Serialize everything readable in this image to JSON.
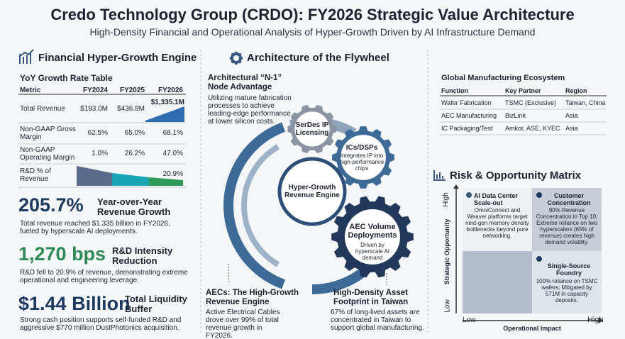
{
  "header": {
    "title": "Credo Technology Group (CRDO): FY2026 Strategic Value Architecture",
    "subtitle": "High-Density Financial and Operational Analysis of Hyper-Growth Driven by AI Infrastructure Demand"
  },
  "financial": {
    "heading": "Financial Hyper-Growth Engine",
    "table_title": "YoY Growth Rate Table",
    "columns": [
      "Metric",
      "FY2024",
      "FY2025",
      "FY2026"
    ],
    "rows": [
      {
        "metric": "Total Revenue",
        "fy2024": "$193.0M",
        "fy2025": "$436.8M",
        "fy2026": "$1,335.1M"
      },
      {
        "metric": "Non-GAAP Gross Margin",
        "fy2024": "62.5%",
        "fy2025": "65.0%",
        "fy2026": "68.1%"
      },
      {
        "metric": "Non-GAAP Operating Margin",
        "fy2024": "1.0%",
        "fy2025": "26.2%",
        "fy2026": "47.0%"
      },
      {
        "metric": "R&D % of Revenue",
        "fy2026": "20.9%"
      }
    ],
    "stats": [
      {
        "value": "205.7%",
        "label": "Year-over-Year Revenue Growth",
        "text": "Total revenue reached $1.335 billion in FY2026, fueled by hyperscale AI deployments."
      },
      {
        "value": "1,270 bps",
        "label": "R&D Intensity Reduction",
        "text": "R&D fell to 20.9% of revenue, demonstrating extreme operational and engineering leverage."
      },
      {
        "value": "$1.44 Billion",
        "label": "Total Liquidity Buffer",
        "text": "Strong cash position supports self-funded R&D and aggressive $770 million DustPhotonics acquisition."
      }
    ]
  },
  "flywheel": {
    "heading": "Architecture of the Flywheel",
    "center": "Hyper-Growth Revenue Engine",
    "serdes": "SerDes IP Licensing",
    "ics": {
      "title": "ICs/DSPs",
      "text": "Integrates IP into high-performance chips"
    },
    "aec": {
      "title": "AEC Volume Deployments",
      "text": "Driven by hyperscale AI demand"
    },
    "callouts": [
      {
        "title": "Architectural “N-1” Node Advantage",
        "text": "Utilizing mature fabrication processes to achieve leading-edge performance at lower silicon costs."
      },
      {
        "title": "AECs: The High-Growth Revenue Engine",
        "text": "Active Electrical Cables drove over 99% of total revenue growth in FY2026."
      },
      {
        "title": "High-Density Asset Footprint in Taiwan",
        "text": "67% of long-lived assets are concentrated in Taiwan to support global manufacturing."
      }
    ]
  },
  "manufacturing": {
    "title": "Global Manufacturing Ecosystem",
    "columns": [
      "Function",
      "Key Partner",
      "Region"
    ],
    "rows": [
      [
        "Wafer Fabrication",
        "TSMC (Exclusive)",
        "Taiwan, China"
      ],
      [
        "AEC Manufacturing",
        "BizLink",
        "Asia"
      ],
      [
        "IC Packaging/Test",
        "Amkor, ASE, KYEC",
        "Asia"
      ]
    ]
  },
  "matrix": {
    "heading": "Risk & Opportunity Matrix",
    "y_label": "Strategic Opportunity",
    "x_label": "Operational Impact",
    "y_high": "High",
    "y_low": "Low",
    "x_low": "Low",
    "x_high": "High",
    "quadrants": [
      {
        "title": "AI Data Center Scale-out",
        "text": "OmniConnect and Weaver platforms target next-gen memory density bottlenecks beyond pure networking."
      },
      {
        "title": "Customer Concentration",
        "text": "90% Revenue Concentration in Top 10; Extreme reliance on two hyperscalers (65% of revenue) creates high demand volatility."
      },
      {
        "title": "Single-Source Foundry",
        "text": "100% reliance on TSMC wafers; Mitigated by 571M in capacity deposits."
      }
    ]
  }
}
